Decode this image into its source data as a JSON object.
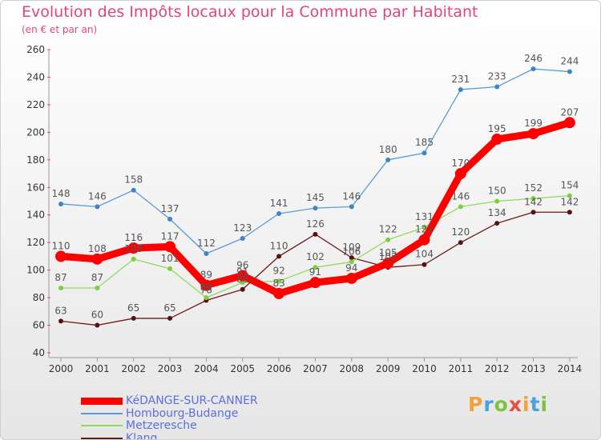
{
  "chart_data": {
    "type": "line",
    "title": "Evolution des Impôts locaux pour la Commune par Habitant",
    "subtitle": "(en € et par an)",
    "categories": [
      "2000",
      "2001",
      "2002",
      "2003",
      "2004",
      "2005",
      "2006",
      "2007",
      "2008",
      "2009",
      "2010",
      "2011",
      "2012",
      "2013",
      "2014"
    ],
    "ylim": [
      40,
      260
    ],
    "yticks": [
      40,
      60,
      80,
      100,
      120,
      140,
      160,
      180,
      200,
      220,
      240,
      260
    ],
    "grid": false,
    "legend_position": "bottom-left",
    "series": [
      {
        "name": "Klang",
        "color": "#6b1a1a",
        "values": [
          63,
          60,
          65,
          65,
          78,
          86,
          110,
          126,
          109,
          102,
          104,
          120,
          134,
          142,
          142
        ]
      },
      {
        "name": "Metzeresche",
        "color": "#8fdc5a",
        "values": [
          87,
          87,
          108,
          101,
          80,
          91,
          92,
          102,
          106,
          122,
          131,
          146,
          150,
          152,
          154
        ]
      },
      {
        "name": "Hombourg-Budange",
        "color": "#5b9bd5",
        "values": [
          148,
          146,
          158,
          137,
          112,
          123,
          141,
          145,
          146,
          180,
          185,
          231,
          233,
          246,
          244
        ]
      },
      {
        "name": "KéDANGE-SUR-CANNER",
        "color": "#ff0000",
        "values": [
          110,
          108,
          116,
          117,
          89,
          96,
          83,
          91,
          94,
          105,
          122,
          170,
          195,
          199,
          207
        ]
      }
    ],
    "legend": [
      "KéDANGE-SUR-CANNER",
      "Hombourg-Budange",
      "Metzeresche",
      "Klang"
    ]
  },
  "brand": {
    "letters": [
      "P",
      "r",
      "o",
      "x",
      "i",
      "t",
      "i"
    ],
    "colors": [
      "#f2a23a",
      "#4aa3df",
      "#7fc242",
      "#e84e3c",
      "#f2a23a",
      "#4aa3df",
      "#7fc242"
    ]
  }
}
